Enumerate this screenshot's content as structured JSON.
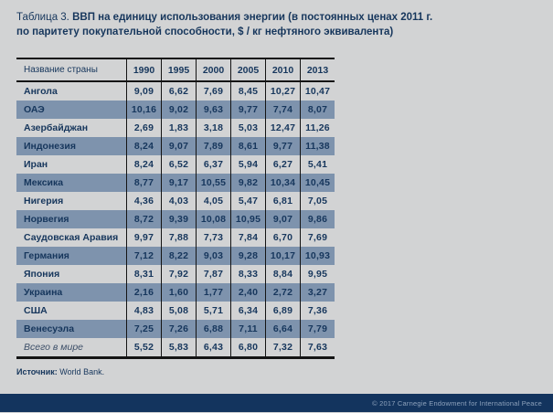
{
  "title": {
    "prefix": "Таблица 3. ",
    "line1": "ВВП на единицу использования энергии (в постоянных ценах 2011 г.",
    "line2": "по паритету покупательной способности, $ / кг нефтяного эквивалента)"
  },
  "table": {
    "columns": [
      "Название страны",
      "1990",
      "1995",
      "2000",
      "2005",
      "2010",
      "2013"
    ],
    "rows": [
      {
        "country": "Ангола",
        "values": [
          "9,09",
          "6,62",
          "7,69",
          "8,45",
          "10,27",
          "10,47"
        ]
      },
      {
        "country": "ОАЭ",
        "values": [
          "10,16",
          "9,02",
          "9,63",
          "9,77",
          "7,74",
          "8,07"
        ]
      },
      {
        "country": "Азербайджан",
        "values": [
          "2,69",
          "1,83",
          "3,18",
          "5,03",
          "12,47",
          "11,26"
        ]
      },
      {
        "country": "Индонезия",
        "values": [
          "8,24",
          "9,07",
          "7,89",
          "8,61",
          "9,77",
          "11,38"
        ]
      },
      {
        "country": "Иран",
        "values": [
          "8,24",
          "6,52",
          "6,37",
          "5,94",
          "6,27",
          "5,41"
        ]
      },
      {
        "country": "Мексика",
        "values": [
          "8,77",
          "9,17",
          "10,55",
          "9,82",
          "10,34",
          "10,45"
        ]
      },
      {
        "country": "Нигерия",
        "values": [
          "4,36",
          "4,03",
          "4,05",
          "5,47",
          "6,81",
          "7,05"
        ]
      },
      {
        "country": "Норвегия",
        "values": [
          "8,72",
          "9,39",
          "10,08",
          "10,95",
          "9,07",
          "9,86"
        ]
      },
      {
        "country": "Саудовская Аравия",
        "values": [
          "9,97",
          "7,88",
          "7,73",
          "7,84",
          "6,70",
          "7,69"
        ]
      },
      {
        "country": "Германия",
        "values": [
          "7,12",
          "8,22",
          "9,03",
          "9,28",
          "10,17",
          "10,93"
        ]
      },
      {
        "country": "Япония",
        "values": [
          "8,31",
          "7,92",
          "7,87",
          "8,33",
          "8,84",
          "9,95"
        ]
      },
      {
        "country": "Украина",
        "values": [
          "2,16",
          "1,60",
          "1,77",
          "2,40",
          "2,72",
          "3,27"
        ]
      },
      {
        "country": "США",
        "values": [
          "4,83",
          "5,08",
          "5,71",
          "6,34",
          "6,89",
          "7,36"
        ]
      },
      {
        "country": "Венесуэла",
        "values": [
          "7,25",
          "7,26",
          "6,88",
          "7,11",
          "6,64",
          "7,79"
        ]
      },
      {
        "country": "Всего в мире",
        "values": [
          "5,52",
          "5,83",
          "6,43",
          "6,80",
          "7,32",
          "7,63"
        ],
        "total": true
      }
    ]
  },
  "source": {
    "label": "Источник:",
    "text": " World Bank."
  },
  "footer": {
    "copyright": "© 2017 Carnegie Endowment for International Peace"
  },
  "colors": {
    "page_background": "#d2d3d4",
    "navy_text": "#16365c",
    "blue_row": "#7e93ad",
    "table_border": "#141414",
    "footer_bar": "#13345e",
    "footer_text": "#8ea2bc"
  }
}
